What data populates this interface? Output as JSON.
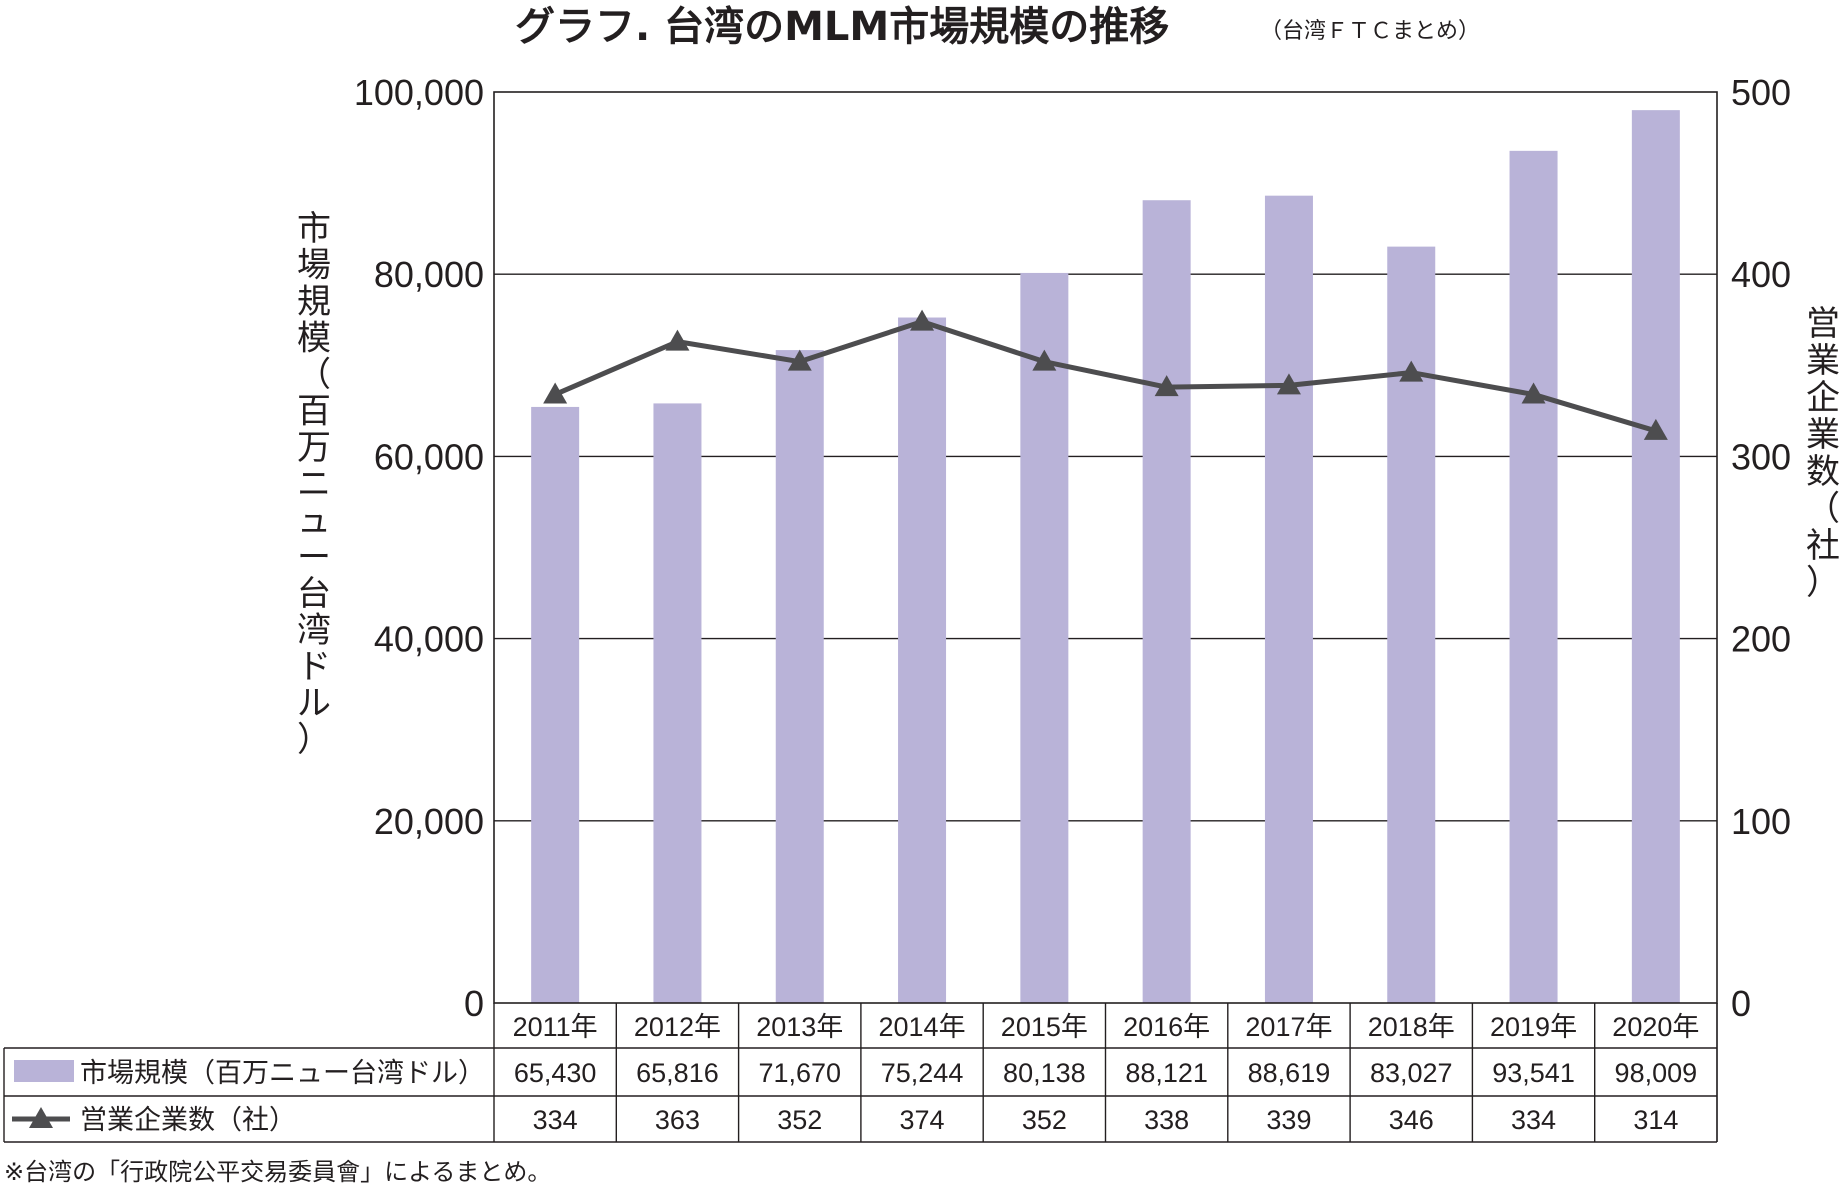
{
  "title": "グラフ. 台湾のMLM市場規模の推移",
  "subtitle": "（台湾ＦＴＣまとめ）",
  "note": "※台湾の「行政院公平交易委員會」によるまとめ。",
  "colors": {
    "bar": "#b9b3d8",
    "line": "#4d4d4f",
    "grid": "#231f20",
    "text": "#231f20"
  },
  "chart_data": {
    "type": "bar",
    "categories": [
      "2011年",
      "2012年",
      "2013年",
      "2014年",
      "2015年",
      "2016年",
      "2017年",
      "2018年",
      "2019年",
      "2020年"
    ],
    "series": [
      {
        "name": "市場規模（百万ニュー台湾ドル）",
        "type": "bar",
        "axis": "left",
        "values": [
          65430,
          65816,
          71670,
          75244,
          80138,
          88121,
          88619,
          83027,
          93541,
          98009
        ],
        "labels": [
          "65,430",
          "65,816",
          "71,670",
          "75,244",
          "80,138",
          "88,121",
          "88,619",
          "83,027",
          "93,541",
          "98,009"
        ]
      },
      {
        "name": "営業企業数（社）",
        "type": "line",
        "marker": "triangle",
        "axis": "right",
        "values": [
          334,
          363,
          352,
          374,
          352,
          338,
          339,
          346,
          334,
          314
        ],
        "labels": [
          "334",
          "363",
          "352",
          "374",
          "352",
          "338",
          "339",
          "346",
          "334",
          "314"
        ]
      }
    ],
    "ylabel": "市場規模（百万ニュー台湾ドル）",
    "y2label": "営業企業数（社）",
    "ylim": [
      0,
      100000
    ],
    "y2lim": [
      0,
      500
    ],
    "yticks": [
      "0",
      "20,000",
      "40,000",
      "60,000",
      "80,000",
      "100,000"
    ],
    "y2ticks": [
      "0",
      "100",
      "200",
      "300",
      "400",
      "500"
    ],
    "grid": true,
    "legend": "data-table-below"
  }
}
